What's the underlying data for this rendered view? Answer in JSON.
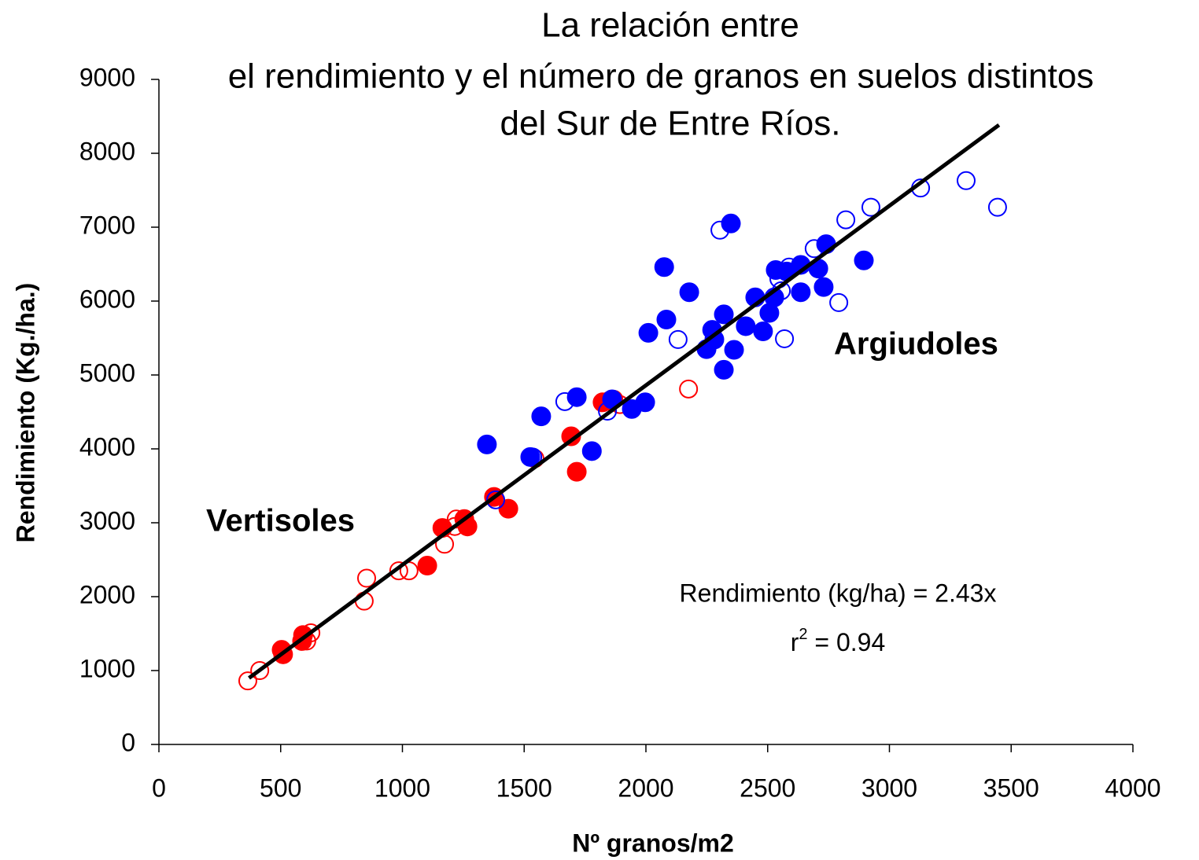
{
  "chart_data": {
    "type": "scatter",
    "title": [
      "La relación entre",
      "el rendimiento y el número de granos en suelos distintos",
      "del Sur de Entre Ríos."
    ],
    "xlabel": "Nº granos/m2",
    "ylabel": "Rendimiento (Kg./ha.)",
    "xlim": [
      0,
      4000
    ],
    "xticks": [
      0,
      500,
      1000,
      1500,
      2000,
      2500,
      3000,
      3500,
      4000
    ],
    "ylim": [
      0,
      9000
    ],
    "yticks": [
      0,
      1000,
      2000,
      3000,
      4000,
      5000,
      6000,
      7000,
      8000,
      9000
    ],
    "series": [
      {
        "color": "#ff0000",
        "marker": "open",
        "x": [
          365,
          414,
          624,
          607,
          853,
          843,
          985,
          1027,
          1173,
          1221,
          1215,
          1544,
          1868,
          1893,
          2175
        ],
        "values": [
          860,
          1000,
          1510,
          1400,
          2250,
          1940,
          2350,
          2350,
          2710,
          3050,
          2950,
          3870,
          4670,
          4600,
          4810
        ]
      },
      {
        "color": "#ff0000",
        "marker": "filled",
        "x": [
          504,
          510,
          588,
          592,
          1102,
          1164,
          1254,
          1267,
          1376,
          1435,
          1693,
          1716,
          1822,
          1851
        ],
        "values": [
          1280,
          1220,
          1400,
          1480,
          2420,
          2930,
          3050,
          2950,
          3350,
          3190,
          4170,
          3690,
          4630,
          4650
        ]
      },
      {
        "color": "#0000ff",
        "marker": "open",
        "x": [
          1383,
          1535,
          1667,
          1842,
          2132,
          2304,
          2569,
          2546,
          2588,
          2691,
          2792,
          2821,
          2924,
          3128,
          3315,
          3444,
          2556
        ],
        "values": [
          3310,
          3890,
          4640,
          4510,
          5480,
          6960,
          5490,
          6300,
          6460,
          6710,
          5980,
          7100,
          7270,
          7530,
          7630,
          7270,
          6140
        ]
      },
      {
        "color": "#0000ff",
        "marker": "filled",
        "x": [
          1347,
          1570,
          1525,
          1716,
          1778,
          1861,
          1942,
          1997,
          2010,
          2075,
          2084,
          2178,
          2249,
          2272,
          2281,
          2320,
          2320,
          2349,
          2362,
          2410,
          2449,
          2481,
          2507,
          2527,
          2533,
          2578,
          2636,
          2636,
          2708,
          2730,
          2740,
          2895
        ],
        "values": [
          4060,
          4440,
          3890,
          4700,
          3970,
          4670,
          4540,
          4630,
          5570,
          6460,
          5750,
          6120,
          5350,
          5610,
          5480,
          5820,
          5070,
          7050,
          5340,
          5660,
          6050,
          5590,
          5840,
          6050,
          6420,
          6400,
          6120,
          6490,
          6440,
          6190,
          6770,
          6550
        ]
      }
    ],
    "trendline": {
      "slope": 2.43,
      "x": [
        370,
        3450
      ],
      "color": "#000000"
    },
    "annotations": [
      "Vertisoles",
      "Argiudoles"
    ],
    "equation": "Rendimiento (kg/ha) = 2.43x",
    "r2": {
      "base": "r",
      "sup": "2",
      "rest": " = 0.94"
    }
  }
}
